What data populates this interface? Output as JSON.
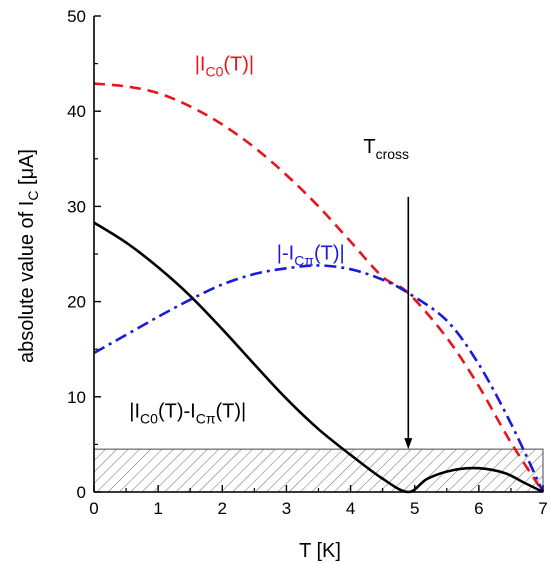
{
  "chart_data": {
    "type": "line",
    "xlabel": "T [K]",
    "ylabel": {
      "main": "absolute value of I",
      "sub": "C",
      "unit": " [μA]"
    },
    "xlim": [
      0,
      7
    ],
    "ylim": [
      0,
      50
    ],
    "x_ticks": [
      0,
      1,
      2,
      3,
      4,
      5,
      6,
      7
    ],
    "y_ticks": [
      0,
      10,
      20,
      30,
      40,
      50
    ],
    "grid": false,
    "legend": "none",
    "series": [
      {
        "name": "|I_C0(T)|",
        "style": "dashed",
        "color": "#e8141b",
        "x": [
          0,
          0.5,
          1,
          1.5,
          2,
          2.5,
          3,
          3.5,
          4,
          4.5,
          4.9,
          5.5,
          6,
          6.5,
          7
        ],
        "y": [
          42.9,
          42.6,
          41.9,
          40.5,
          38.6,
          36.2,
          33.3,
          30.0,
          26.3,
          22.6,
          20.9,
          16.2,
          11.1,
          5.2,
          0
        ]
      },
      {
        "name": "|-I_Cπ(T)|",
        "style": "dashdot",
        "color": "#1a1adb",
        "x": [
          0,
          0.5,
          1,
          1.5,
          2,
          2.5,
          3,
          3.5,
          4,
          4.5,
          4.9,
          5.5,
          6,
          6.5,
          7
        ],
        "y": [
          14.6,
          16.5,
          18.4,
          20.2,
          21.8,
          22.9,
          23.5,
          23.8,
          23.4,
          22.3,
          20.9,
          18.0,
          13.4,
          7.2,
          0
        ]
      },
      {
        "name": "|I_C0(T)-I_Cπ(T)|",
        "style": "solid",
        "color": "#000000",
        "x": [
          0,
          0.5,
          1,
          1.5,
          2,
          2.5,
          3,
          3.5,
          4,
          4.5,
          4.9,
          5.2,
          5.6,
          6,
          6.4,
          6.7,
          7
        ],
        "y": [
          28.3,
          26.2,
          23.6,
          20.6,
          17.1,
          13.4,
          9.8,
          6.6,
          3.9,
          1.4,
          0,
          1.4,
          2.3,
          2.5,
          2.0,
          1.0,
          0
        ]
      }
    ],
    "band": {
      "x": [
        0,
        7
      ],
      "y": [
        0,
        4.5
      ],
      "fill": "hatched"
    },
    "annotations": {
      "ic0": {
        "text": "|I",
        "sub": "C0",
        "tail": "(T)|",
        "x": 1.57,
        "y": 44.3,
        "color": "#e8141b"
      },
      "icpi": {
        "text": "|-I",
        "sub": "Cπ",
        "tail": "(T)|",
        "x": 2.85,
        "y": 24.4,
        "color": "#1a1adb"
      },
      "diff": {
        "text": "|I",
        "sub": "C0",
        "mid": "(T)-I",
        "sub2": "Cπ",
        "tail": "(T)|",
        "x": 0.55,
        "y": 7.8,
        "color": "#000000"
      },
      "tcross": {
        "text": "T",
        "sub": "cross",
        "x": 4.2,
        "y": 35.6,
        "color": "#000000"
      }
    },
    "arrow": {
      "x": 4.9,
      "y_from": 31,
      "y_to": 4.5
    }
  }
}
